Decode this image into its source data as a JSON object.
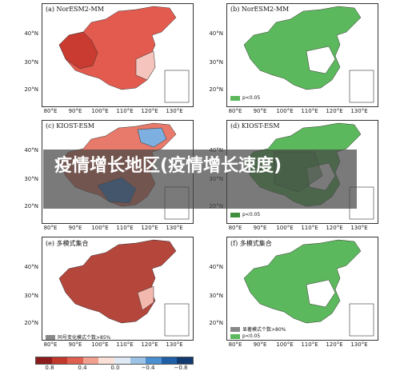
{
  "panels": [
    {
      "title": "(a) NorESM2-MM",
      "style": "red"
    },
    {
      "title": "(b) NorESM2-MM",
      "style": "green",
      "legend": "p<0.05"
    },
    {
      "title": "(c) KIOST-ESM",
      "style": "mixed"
    },
    {
      "title": "(d) KIOST-ESM",
      "style": "green",
      "legend": "p<0.05"
    },
    {
      "title": "(e) 多模式集合",
      "style": "dark-red",
      "legend": "同号变化模式个数>85%"
    },
    {
      "title": "(f) 多模式集合",
      "style": "green",
      "legend": "显著模式个数>80%",
      "legend2": "p<0.05"
    }
  ],
  "lat_ticks": [
    "40°N",
    "30°N",
    "20°N"
  ],
  "lon_ticks": [
    "80°E",
    "90°E",
    "100°E",
    "110°E",
    "120°E",
    "130°E"
  ],
  "colorbar": {
    "ticks": [
      "0.8",
      "0.4",
      "0.0",
      "−0.4",
      "−0.8"
    ],
    "colors": [
      "#8c1c1c",
      "#c0392b",
      "#e06050",
      "#f1a090",
      "#fbe0d8",
      "#dfeaf5",
      "#9cc3e5",
      "#4a8fd0",
      "#1f5fa8",
      "#103a70"
    ]
  },
  "overlay": {
    "title": "疫情增长地区(疫情增长速度)"
  },
  "colors": {
    "red": "#e35b4f",
    "dark_red": "#b5463c",
    "green": "#5cb85c",
    "blue": "#3f7fc8",
    "gray_hatch": "#777777"
  }
}
